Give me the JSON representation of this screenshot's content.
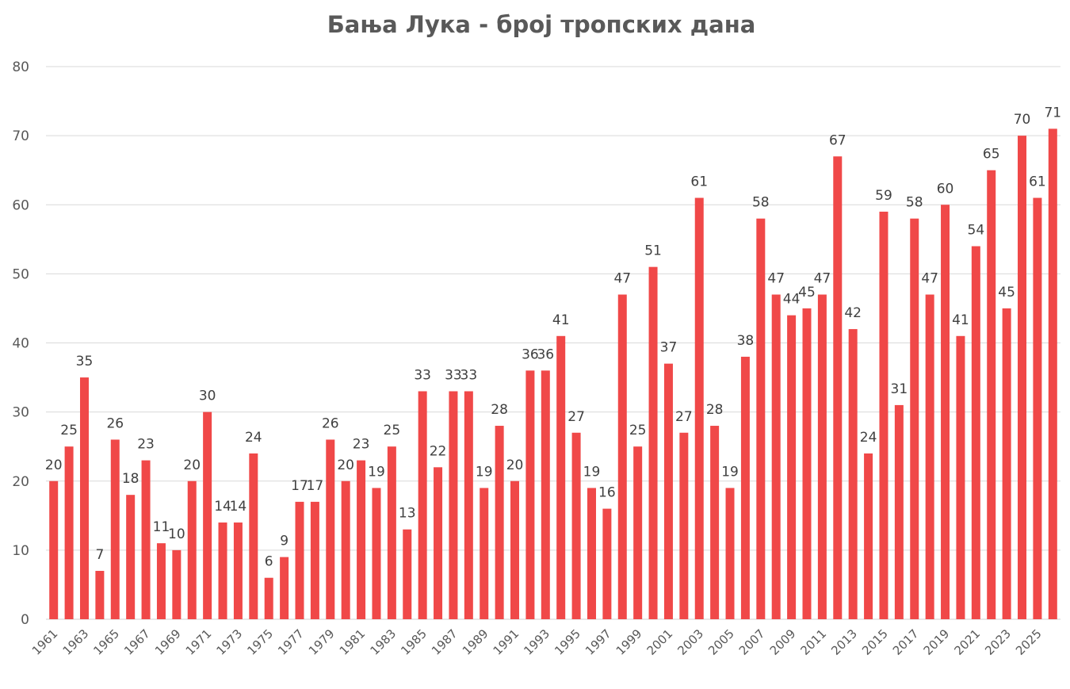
{
  "chart_data": {
    "type": "bar",
    "title": "Бања Лука - број тропских дана",
    "xlabel": "",
    "ylabel": "",
    "ylim": [
      0,
      80
    ],
    "yticks": [
      0,
      10,
      20,
      30,
      40,
      50,
      60,
      70,
      80
    ],
    "grid": true,
    "legend": "none",
    "bar_color": "#f04848",
    "categories": [
      "1961",
      "1962",
      "1963",
      "1964",
      "1965",
      "1966",
      "1967",
      "1968",
      "1969",
      "1970",
      "1971",
      "1972",
      "1973",
      "1974",
      "1975",
      "1976",
      "1977",
      "1978",
      "1979",
      "1980",
      "1981",
      "1982",
      "1983",
      "1984",
      "1985",
      "1986",
      "1987",
      "1988",
      "1989",
      "1990",
      "1991",
      "1992",
      "1993",
      "1994",
      "1995",
      "1996",
      "1997",
      "1998",
      "1999",
      "2000",
      "2001",
      "2002",
      "2003",
      "2004",
      "2005",
      "2006",
      "2007",
      "2008",
      "2009",
      "2010",
      "2011",
      "2012",
      "2013",
      "2014",
      "2015",
      "2016",
      "2017",
      "2018",
      "2019",
      "2020",
      "2021",
      "2022",
      "2023",
      "2024",
      "2025",
      "2026"
    ],
    "x_tick_labels": [
      "1961",
      "1963",
      "1965",
      "1967",
      "1969",
      "1971",
      "1973",
      "1975",
      "1977",
      "1979",
      "1981",
      "1983",
      "1985",
      "1987",
      "1989",
      "1991",
      "1993",
      "1995",
      "1997",
      "1999",
      "2001",
      "2003",
      "2005",
      "2007",
      "2009",
      "2011",
      "2013",
      "2015",
      "2017",
      "2019",
      "2021",
      "2023",
      "2025"
    ],
    "values": [
      20,
      25,
      35,
      7,
      26,
      18,
      23,
      11,
      10,
      20,
      30,
      14,
      14,
      24,
      6,
      9,
      17,
      17,
      26,
      20,
      23,
      19,
      25,
      13,
      33,
      22,
      33,
      33,
      19,
      28,
      20,
      36,
      36,
      41,
      27,
      19,
      16,
      47,
      25,
      51,
      37,
      27,
      61,
      28,
      19,
      38,
      58,
      47,
      44,
      45,
      47,
      67,
      42,
      24,
      59,
      31,
      58,
      47,
      60,
      41,
      54,
      65,
      45,
      70,
      61,
      71
    ]
  }
}
